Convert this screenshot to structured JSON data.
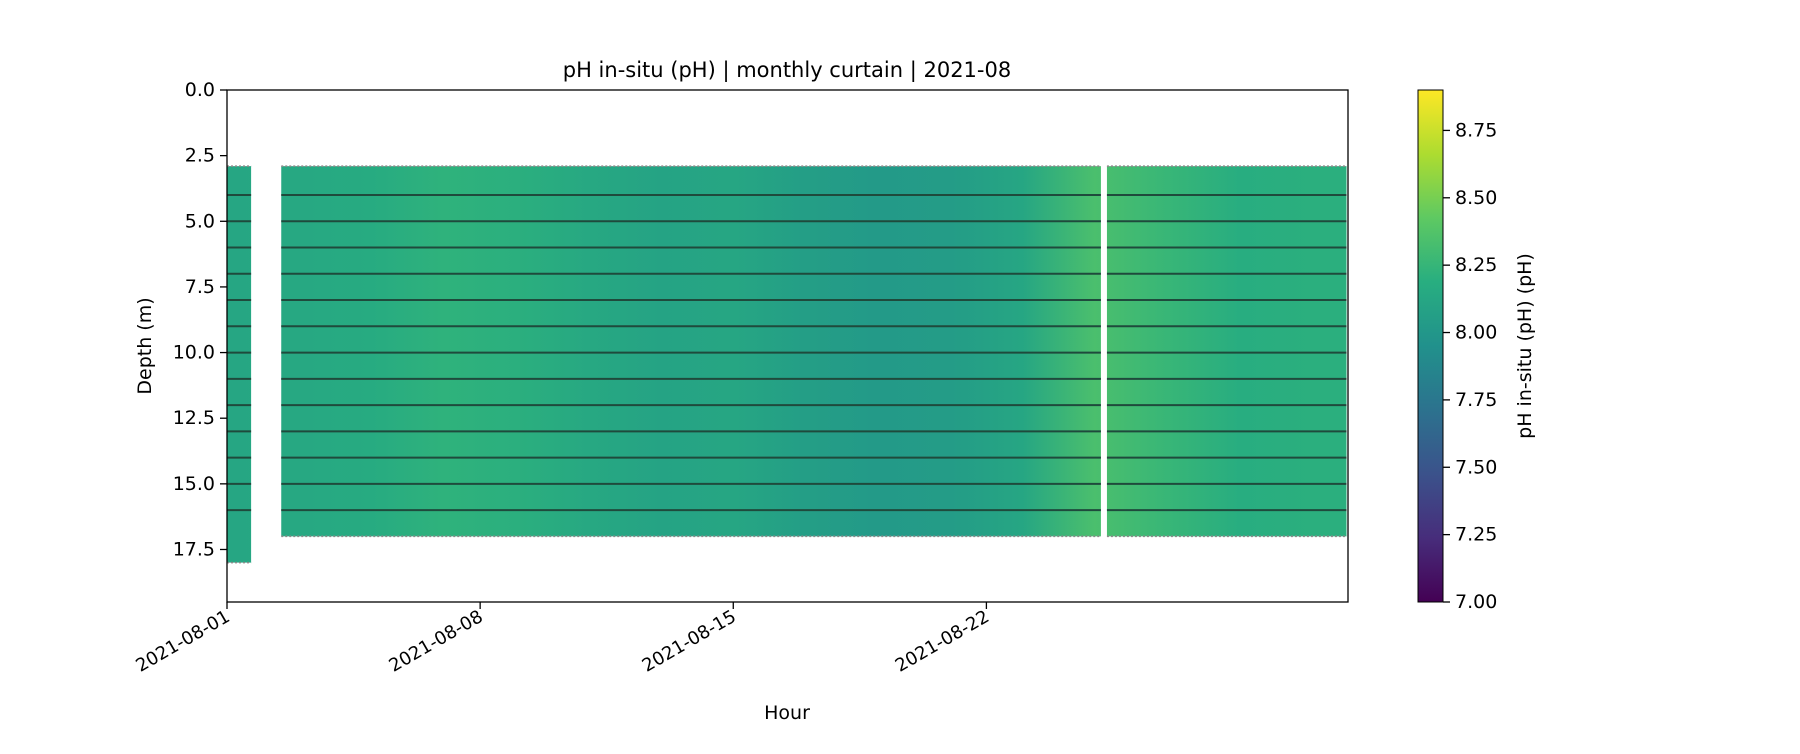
{
  "chart_data": {
    "type": "heatmap",
    "title": "pH in-situ (pH) | monthly curtain | 2021-08",
    "xlabel": "Hour",
    "ylabel": "Depth (m)",
    "colorbar_label": "pH in-situ (pH) (pH)",
    "colormap": "viridis",
    "x_range": [
      "2021-08-01",
      "2021-08-31"
    ],
    "x_ticks": [
      "2021-08-01",
      "2021-08-08",
      "2021-08-15",
      "2021-08-22"
    ],
    "y_range": [
      0.0,
      19.5
    ],
    "y_inverted": true,
    "y_ticks": [
      "0.0",
      "2.5",
      "5.0",
      "7.5",
      "10.0",
      "12.5",
      "15.0",
      "17.5"
    ],
    "color_range": [
      7.0,
      8.9
    ],
    "colorbar_ticks": [
      "7.00",
      "7.25",
      "7.50",
      "7.75",
      "8.00",
      "8.25",
      "8.50",
      "8.75"
    ],
    "sensor_depths": [
      4,
      5,
      6,
      7,
      8,
      9,
      10,
      11,
      12,
      13,
      14,
      15,
      16
    ],
    "segments": [
      {
        "start": "2021-08-01",
        "end": "2021-08-01T16:00",
        "top_depth": 2.9,
        "bottom_depth": 18.0
      },
      {
        "start": "2021-08-02T12:00",
        "end": "2021-08-25T04:00",
        "top_depth": 2.9,
        "bottom_depth": 17.0
      },
      {
        "start": "2021-08-25T08:00",
        "end": "2021-08-31T23:00",
        "top_depth": 2.9,
        "bottom_depth": 17.0
      }
    ],
    "daily_mean_ph": [
      {
        "date": "2021-08-01",
        "value": 8.12
      },
      {
        "date": "2021-08-03",
        "value": 8.14
      },
      {
        "date": "2021-08-05",
        "value": 8.16
      },
      {
        "date": "2021-08-07",
        "value": 8.22
      },
      {
        "date": "2021-08-09",
        "value": 8.2
      },
      {
        "date": "2021-08-11",
        "value": 8.14
      },
      {
        "date": "2021-08-13",
        "value": 8.1
      },
      {
        "date": "2021-08-15",
        "value": 8.12
      },
      {
        "date": "2021-08-17",
        "value": 8.06
      },
      {
        "date": "2021-08-19",
        "value": 8.02
      },
      {
        "date": "2021-08-21",
        "value": 8.04
      },
      {
        "date": "2021-08-23",
        "value": 8.12
      },
      {
        "date": "2021-08-25",
        "value": 8.34
      },
      {
        "date": "2021-08-27",
        "value": 8.26
      },
      {
        "date": "2021-08-29",
        "value": 8.18
      },
      {
        "date": "2021-08-31",
        "value": 8.2
      }
    ]
  }
}
